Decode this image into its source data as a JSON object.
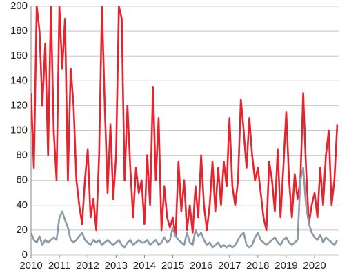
{
  "chart_data": {
    "type": "line",
    "x": [
      2010.0,
      2010.1,
      2010.2,
      2010.3,
      2010.4,
      2010.5,
      2010.6,
      2010.7,
      2010.8,
      2010.9,
      2011.0,
      2011.1,
      2011.2,
      2011.3,
      2011.4,
      2011.5,
      2011.6,
      2011.7,
      2011.8,
      2011.9,
      2012.0,
      2012.1,
      2012.2,
      2012.3,
      2012.4,
      2012.5,
      2012.6,
      2012.7,
      2012.8,
      2012.9,
      2013.0,
      2013.1,
      2013.2,
      2013.3,
      2013.4,
      2013.5,
      2013.6,
      2013.7,
      2013.8,
      2013.9,
      2014.0,
      2014.1,
      2014.2,
      2014.3,
      2014.4,
      2014.5,
      2014.6,
      2014.7,
      2014.8,
      2014.9,
      2015.0,
      2015.1,
      2015.2,
      2015.3,
      2015.4,
      2015.5,
      2015.6,
      2015.7,
      2015.8,
      2015.9,
      2016.0,
      2016.1,
      2016.2,
      2016.3,
      2016.4,
      2016.5,
      2016.6,
      2016.7,
      2016.8,
      2016.9,
      2017.0,
      2017.1,
      2017.2,
      2017.3,
      2017.4,
      2017.5,
      2017.6,
      2017.7,
      2017.8,
      2017.9,
      2018.0,
      2018.1,
      2018.2,
      2018.3,
      2018.4,
      2018.5,
      2018.6,
      2018.7,
      2018.8,
      2018.9,
      2019.0,
      2019.1,
      2019.2,
      2019.3,
      2019.4,
      2019.5,
      2019.6,
      2019.7,
      2019.8,
      2019.9,
      2020.0,
      2020.1,
      2020.2,
      2020.3,
      2020.4,
      2020.5,
      2020.6,
      2020.7,
      2020.8
    ],
    "series": [
      {
        "color": "#e8232e",
        "values": [
          130,
          70,
          200,
          180,
          120,
          170,
          80,
          200,
          100,
          60,
          200,
          150,
          190,
          60,
          150,
          120,
          60,
          40,
          25,
          60,
          85,
          30,
          45,
          20,
          80,
          200,
          120,
          50,
          105,
          45,
          80,
          200,
          190,
          60,
          120,
          70,
          30,
          70,
          50,
          60,
          25,
          80,
          40,
          135,
          60,
          110,
          20,
          55,
          30,
          22,
          30,
          15,
          75,
          35,
          60,
          20,
          40,
          18,
          55,
          30,
          80,
          40,
          20,
          40,
          75,
          35,
          70,
          40,
          75,
          55,
          110,
          55,
          40,
          60,
          125,
          100,
          70,
          110,
          80,
          60,
          70,
          50,
          30,
          20,
          75,
          60,
          35,
          85,
          30,
          70,
          115,
          60,
          30,
          65,
          45,
          60,
          130,
          70,
          25,
          40,
          50,
          30,
          70,
          40,
          80,
          100,
          40,
          60,
          105
        ]
      },
      {
        "color": "#8c9aa8",
        "values": [
          18,
          12,
          10,
          15,
          8,
          12,
          10,
          12,
          14,
          12,
          30,
          35,
          28,
          22,
          12,
          10,
          12,
          15,
          18,
          12,
          10,
          8,
          12,
          10,
          12,
          8,
          10,
          12,
          10,
          8,
          10,
          12,
          8,
          6,
          10,
          12,
          8,
          10,
          12,
          10,
          10,
          12,
          8,
          10,
          12,
          8,
          10,
          14,
          10,
          12,
          22,
          15,
          12,
          10,
          8,
          18,
          10,
          8,
          20,
          15,
          18,
          12,
          8,
          10,
          6,
          8,
          10,
          6,
          8,
          6,
          8,
          6,
          8,
          12,
          16,
          18,
          8,
          6,
          8,
          14,
          18,
          12,
          10,
          8,
          10,
          12,
          14,
          10,
          8,
          12,
          14,
          10,
          8,
          10,
          12,
          60,
          70,
          40,
          25,
          18,
          14,
          12,
          16,
          10,
          14,
          12,
          10,
          8,
          12
        ]
      }
    ],
    "xlim": [
      2010,
      2020.85
    ],
    "xticks": [
      2010,
      2011,
      2012,
      2013,
      2014,
      2015,
      2016,
      2017,
      2018,
      2019,
      2020
    ],
    "ylim": [
      0,
      200
    ],
    "yticks": [
      0,
      20,
      40,
      60,
      80,
      100,
      120,
      140,
      160,
      180,
      200
    ],
    "grid": true
  }
}
